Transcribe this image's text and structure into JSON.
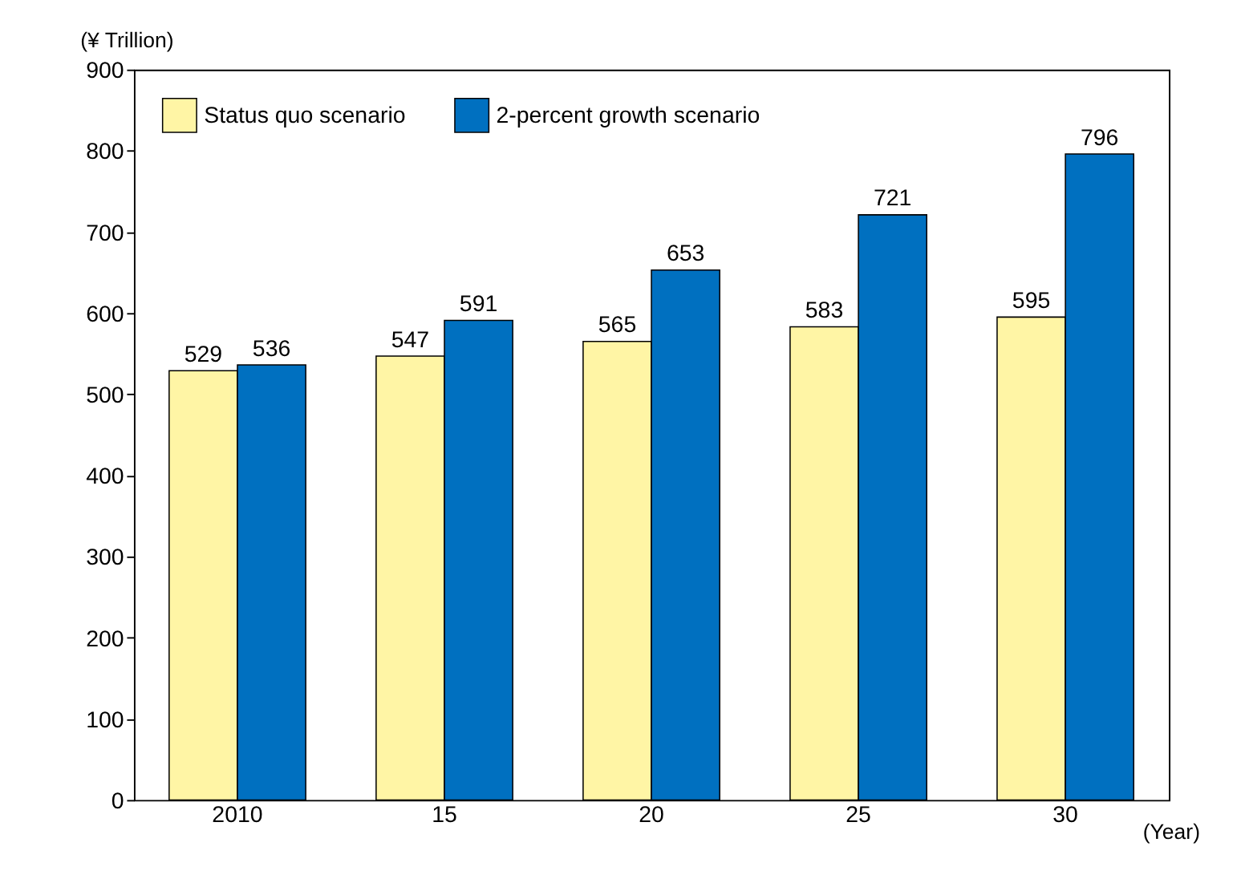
{
  "chart_data": {
    "type": "bar",
    "ylabel": "(¥ Trillion)",
    "xlabel": "(Year)",
    "categories": [
      "2010",
      "15",
      "20",
      "25",
      "30"
    ],
    "series": [
      {
        "name": "Status quo scenario",
        "color": "#fff5a5",
        "values": [
          529,
          547,
          565,
          583,
          595
        ]
      },
      {
        "name": "2-percent growth scenario",
        "color": "#0070c0",
        "values": [
          536,
          591,
          653,
          721,
          796
        ]
      }
    ],
    "ylim": [
      0,
      900
    ],
    "yticks": [
      0,
      100,
      200,
      300,
      400,
      500,
      600,
      700,
      800,
      900
    ],
    "data_labels": true,
    "grid": false,
    "legend": "top left"
  }
}
